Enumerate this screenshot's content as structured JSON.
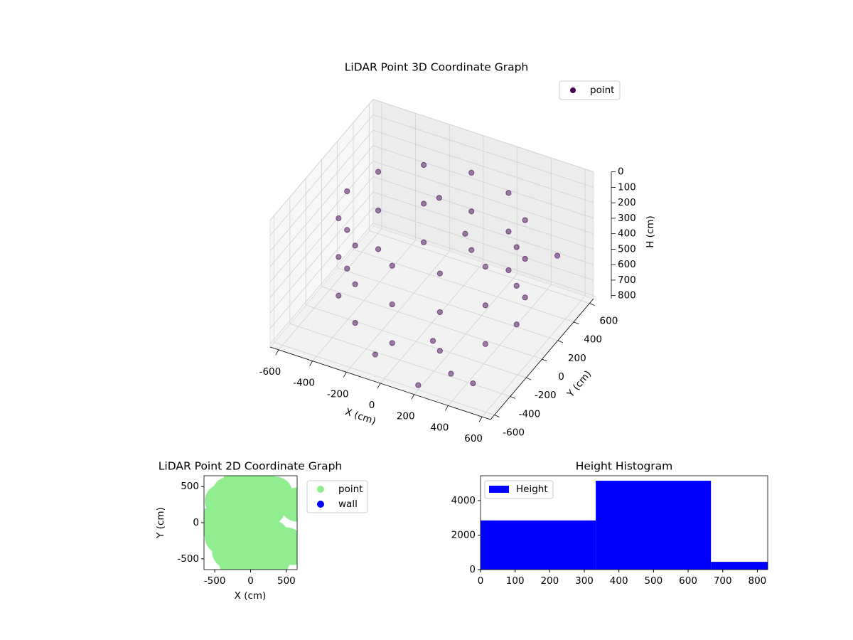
{
  "chart_data": [
    {
      "type": "scatter3d",
      "title": "LiDAR Point 3D Coordinate Graph",
      "xlabel": "X (cm)",
      "ylabel": "Y (cm)",
      "zlabel": "H (cm)",
      "xlim": [
        -650,
        650
      ],
      "ylim": [
        -650,
        650
      ],
      "zlim": [
        0,
        820
      ],
      "z_inverted": true,
      "xticks": [
        -600,
        -400,
        -200,
        0,
        200,
        400,
        600
      ],
      "yticks": [
        -600,
        -400,
        -200,
        0,
        200,
        400,
        600
      ],
      "zticks": [
        0,
        100,
        200,
        300,
        400,
        500,
        600,
        700,
        800
      ],
      "grid": true,
      "legend": "upper right",
      "series": [
        {
          "name": "point",
          "color": "#440154",
          "x": [
            500,
            433,
            250,
            0,
            -250,
            -433,
            -500,
            -433,
            -250,
            0,
            250,
            433,
            500,
            433,
            250,
            0,
            -250,
            -433,
            -500,
            -433,
            -250,
            0,
            250,
            433,
            500,
            433,
            250,
            0,
            -250,
            -433,
            -500,
            -433,
            -250,
            0,
            250,
            433,
            100,
            300,
            -100,
            200,
            500,
            600,
            -50,
            150
          ],
          "y": [
            0,
            250,
            433,
            500,
            433,
            250,
            0,
            -250,
            -433,
            -500,
            -433,
            -250,
            0,
            250,
            433,
            500,
            433,
            250,
            0,
            -250,
            -433,
            -500,
            -433,
            -250,
            0,
            250,
            433,
            500,
            433,
            250,
            0,
            -250,
            -433,
            -500,
            -433,
            -250,
            -200,
            -400,
            -500,
            -600,
            -550,
            300,
            200,
            100
          ],
          "z": [
            150,
            150,
            150,
            150,
            150,
            150,
            150,
            150,
            150,
            150,
            150,
            150,
            400,
            400,
            400,
            400,
            400,
            400,
            400,
            400,
            400,
            400,
            400,
            400,
            650,
            650,
            650,
            650,
            650,
            650,
            650,
            650,
            650,
            650,
            650,
            650,
            780,
            800,
            760,
            790,
            700,
            350,
            150,
            250
          ]
        }
      ]
    },
    {
      "type": "scatter",
      "title": "LiDAR Point 2D Coordinate Graph",
      "xlabel": "X (cm)",
      "ylabel": "Y (cm)",
      "xlim": [
        -650,
        650
      ],
      "ylim": [
        -650,
        650
      ],
      "xticks": [
        -500,
        0,
        500
      ],
      "yticks": [
        -500,
        0,
        500
      ],
      "legend": "outside right",
      "series": [
        {
          "name": "point",
          "color": "#90ee90",
          "x": [
            -500,
            -400,
            -300,
            -300,
            -150,
            0,
            0,
            100,
            -200,
            200,
            300,
            400,
            500,
            600,
            300,
            200,
            -100,
            100,
            650,
            0,
            -200,
            -400,
            250,
            350
          ],
          "y": [
            0,
            300,
            400,
            -400,
            550,
            500,
            -300,
            0,
            0,
            450,
            -550,
            -400,
            -300,
            -350,
            -200,
            -600,
            -450,
            550,
            250,
            250,
            -550,
            -200,
            200,
            400
          ]
        },
        {
          "name": "wall",
          "color": "#0000ff",
          "x": [],
          "y": []
        }
      ]
    },
    {
      "type": "hist",
      "title": "Height Histogram",
      "bins": [
        0,
        333,
        666,
        830
      ],
      "counts": [
        2850,
        5150,
        450
      ],
      "xlim": [
        0,
        830
      ],
      "ylim": [
        0,
        5440
      ],
      "xticks": [
        0,
        100,
        200,
        300,
        400,
        500,
        600,
        700,
        800
      ],
      "yticks": [
        0,
        2000,
        4000
      ],
      "series_name": "Height",
      "color": "#0000ff",
      "legend": "upper left"
    }
  ]
}
